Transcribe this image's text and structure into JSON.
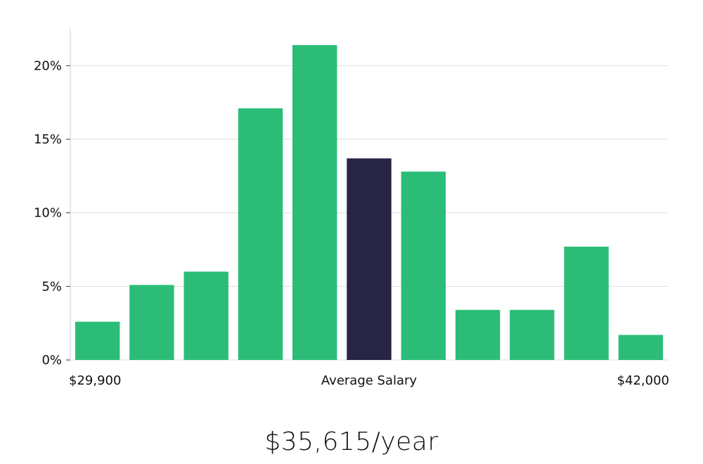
{
  "chart_data": {
    "type": "bar",
    "values": [
      2.6,
      5.1,
      6.0,
      17.1,
      21.4,
      13.7,
      12.8,
      3.4,
      3.4,
      7.7,
      1.7
    ],
    "highlight_index": 5,
    "y_ticks": [
      "0%",
      "5%",
      "10%",
      "15%",
      "20%"
    ],
    "y_tick_values": [
      0,
      5,
      10,
      15,
      20
    ],
    "ylim": [
      0,
      22.5
    ],
    "x_labels": {
      "min": "$29,900",
      "center": "Average Salary",
      "max": "$42,000"
    },
    "grid": true,
    "colors": {
      "bar": "#2bbd77",
      "highlight": "#282446",
      "grid": "#dddddd",
      "axis": "#cccccc"
    }
  },
  "salary_text": "$35,615/year"
}
